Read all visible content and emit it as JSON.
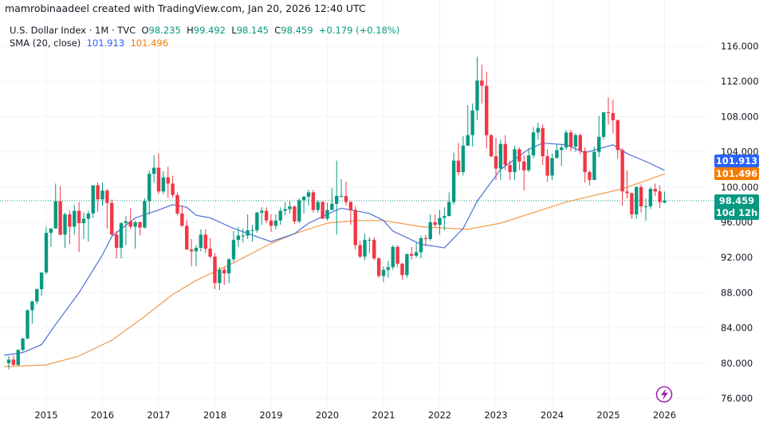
{
  "attribution": "mamrobinaadeel created with TradingView.com, Jan 20, 2026 12:40 UTC",
  "legend": {
    "symbol": "U.S. Dollar Index · 1M · TVC",
    "o_label": "O",
    "o_value": "98.235",
    "h_label": "H",
    "h_value": "99.492",
    "l_label": "L",
    "l_value": "98.145",
    "c_label": "C",
    "c_value": "98.459",
    "change": "+0.179 (+0.18%)",
    "sma_label": "SMA (20, close)",
    "sma_value_1": "101.913",
    "sma_value_2": "101.496"
  },
  "price_tags": {
    "sma_blue": "101.913",
    "sma_orange": "101.496",
    "last_price": "98.459",
    "countdown": "10d 12h"
  },
  "colors": {
    "up": "#089981",
    "down": "#f23645",
    "sma_blue": "#4f6fd6",
    "sma_orange": "#f29a4a",
    "tag_blue": "#2962ff",
    "tag_orange": "#f57c00",
    "grid": "#f0f3fa"
  },
  "logo_icon": "tradingview-lightning-icon",
  "chart_data": {
    "type": "candlestick",
    "title": "U.S. Dollar Index · 1M · TVC",
    "interval": "1M",
    "start": "2014-05",
    "ylim": [
      74,
      118
    ],
    "yticks": [
      "76.000",
      "80.000",
      "84.000",
      "88.000",
      "92.000",
      "96.000",
      "100.000",
      "104.000",
      "108.000",
      "112.000",
      "116.000"
    ],
    "xticks": [
      "2015",
      "2016",
      "2017",
      "2018",
      "2019",
      "2020",
      "2021",
      "2022",
      "2023",
      "2024",
      "2025",
      "2026"
    ],
    "grid": true,
    "last_price_line": 98.459,
    "ohlc": [
      [
        80.0,
        80.8,
        79.3,
        80.4
      ],
      [
        80.4,
        80.9,
        79.7,
        79.8
      ],
      [
        79.8,
        81.6,
        79.7,
        81.5
      ],
      [
        81.5,
        82.9,
        81.3,
        82.8
      ],
      [
        82.8,
        86.1,
        82.7,
        86.0
      ],
      [
        86.0,
        87.1,
        84.5,
        87.0
      ],
      [
        87.0,
        88.5,
        86.7,
        88.4
      ],
      [
        88.4,
        90.3,
        87.6,
        90.3
      ],
      [
        90.3,
        95.5,
        90.1,
        94.8
      ],
      [
        94.8,
        95.3,
        93.2,
        95.3
      ],
      [
        95.3,
        100.4,
        95.3,
        98.4
      ],
      [
        98.4,
        100.1,
        94.5,
        94.6
      ],
      [
        94.6,
        97.1,
        93.1,
        96.9
      ],
      [
        96.9,
        97.4,
        93.5,
        95.5
      ],
      [
        95.5,
        98.0,
        94.6,
        97.3
      ],
      [
        97.3,
        98.3,
        92.6,
        95.9
      ],
      [
        95.9,
        97.1,
        94.1,
        96.4
      ],
      [
        96.4,
        97.3,
        93.8,
        97.0
      ],
      [
        97.0,
        100.2,
        96.5,
        100.2
      ],
      [
        100.2,
        100.5,
        97.2,
        98.6
      ],
      [
        98.6,
        100.5,
        97.9,
        99.6
      ],
      [
        99.6,
        99.8,
        95.3,
        98.2
      ],
      [
        98.2,
        98.6,
        94.5,
        94.6
      ],
      [
        94.6,
        95.0,
        91.9,
        93.1
      ],
      [
        93.1,
        96.0,
        91.9,
        95.9
      ],
      [
        95.9,
        96.7,
        93.4,
        96.1
      ],
      [
        96.1,
        97.6,
        95.2,
        95.5
      ],
      [
        95.5,
        96.2,
        93.0,
        96.0
      ],
      [
        96.0,
        96.1,
        94.5,
        95.4
      ],
      [
        95.4,
        98.7,
        95.3,
        98.4
      ],
      [
        98.4,
        101.9,
        96.9,
        101.5
      ],
      [
        101.5,
        103.6,
        100.5,
        102.2
      ],
      [
        102.2,
        103.8,
        99.2,
        99.5
      ],
      [
        99.5,
        101.8,
        99.2,
        101.1
      ],
      [
        101.1,
        102.3,
        98.8,
        100.4
      ],
      [
        100.4,
        101.3,
        98.8,
        99.1
      ],
      [
        99.1,
        99.4,
        96.8,
        97.0
      ],
      [
        97.0,
        97.9,
        95.5,
        95.6
      ],
      [
        95.6,
        96.3,
        92.9,
        92.9
      ],
      [
        92.9,
        94.1,
        91.0,
        92.7
      ],
      [
        92.7,
        93.4,
        91.0,
        93.1
      ],
      [
        93.1,
        95.2,
        92.7,
        94.6
      ],
      [
        94.6,
        95.2,
        92.5,
        93.0
      ],
      [
        93.0,
        94.2,
        91.9,
        92.1
      ],
      [
        92.1,
        92.5,
        88.4,
        89.1
      ],
      [
        89.1,
        90.9,
        88.3,
        90.6
      ],
      [
        90.6,
        90.9,
        88.9,
        90.2
      ],
      [
        90.2,
        91.9,
        89.1,
        91.8
      ],
      [
        91.8,
        95.0,
        91.5,
        94.0
      ],
      [
        94.0,
        95.5,
        93.2,
        94.5
      ],
      [
        94.5,
        95.3,
        93.7,
        94.5
      ],
      [
        94.5,
        96.9,
        94.1,
        95.1
      ],
      [
        95.1,
        95.7,
        93.8,
        95.1
      ],
      [
        95.1,
        97.2,
        94.8,
        97.1
      ],
      [
        97.1,
        97.7,
        95.7,
        97.3
      ],
      [
        97.3,
        97.7,
        95.9,
        96.2
      ],
      [
        96.2,
        96.9,
        94.9,
        95.6
      ],
      [
        95.6,
        96.9,
        95.2,
        96.2
      ],
      [
        96.2,
        97.7,
        95.7,
        97.3
      ],
      [
        97.3,
        98.3,
        96.8,
        97.5
      ],
      [
        97.5,
        98.4,
        97.0,
        97.8
      ],
      [
        97.8,
        97.9,
        95.8,
        96.1
      ],
      [
        96.1,
        98.7,
        95.9,
        98.5
      ],
      [
        98.5,
        99.0,
        97.0,
        98.9
      ],
      [
        98.9,
        99.7,
        97.9,
        99.4
      ],
      [
        99.4,
        99.7,
        97.1,
        97.4
      ],
      [
        97.4,
        98.5,
        97.1,
        98.3
      ],
      [
        98.3,
        98.4,
        96.4,
        96.4
      ],
      [
        96.4,
        98.2,
        96.2,
        97.4
      ],
      [
        97.4,
        99.9,
        97.4,
        98.1
      ],
      [
        98.1,
        103.0,
        94.6,
        99.0
      ],
      [
        99.0,
        100.9,
        98.8,
        99.0
      ],
      [
        99.0,
        100.6,
        97.9,
        98.3
      ],
      [
        98.3,
        98.4,
        95.7,
        97.4
      ],
      [
        97.4,
        97.8,
        92.9,
        93.4
      ],
      [
        93.4,
        93.9,
        91.9,
        92.1
      ],
      [
        92.1,
        94.7,
        91.7,
        94.0
      ],
      [
        94.0,
        94.3,
        92.5,
        94.0
      ],
      [
        94.0,
        94.3,
        91.7,
        91.9
      ],
      [
        91.9,
        92.0,
        89.7,
        89.9
      ],
      [
        89.9,
        91.0,
        89.2,
        90.6
      ],
      [
        90.6,
        91.6,
        89.7,
        90.9
      ],
      [
        90.9,
        93.4,
        90.6,
        93.2
      ],
      [
        93.2,
        93.4,
        90.9,
        91.3
      ],
      [
        91.3,
        91.4,
        89.5,
        90.0
      ],
      [
        90.0,
        92.4,
        89.7,
        92.4
      ],
      [
        92.4,
        93.2,
        91.8,
        92.2
      ],
      [
        92.2,
        93.7,
        92.0,
        92.6
      ],
      [
        92.6,
        94.5,
        91.9,
        94.2
      ],
      [
        94.2,
        94.6,
        93.3,
        94.1
      ],
      [
        94.1,
        96.9,
        93.9,
        96.0
      ],
      [
        96.0,
        96.9,
        95.5,
        95.7
      ],
      [
        95.7,
        97.4,
        94.6,
        96.5
      ],
      [
        96.5,
        97.7,
        95.1,
        96.7
      ],
      [
        96.7,
        99.4,
        96.7,
        98.3
      ],
      [
        98.3,
        103.9,
        98.0,
        103.0
      ],
      [
        103.0,
        105.0,
        101.3,
        101.7
      ],
      [
        101.7,
        105.8,
        101.3,
        104.7
      ],
      [
        104.7,
        109.3,
        104.7,
        105.9
      ],
      [
        105.9,
        109.5,
        104.6,
        108.7
      ],
      [
        108.7,
        114.8,
        107.6,
        112.1
      ],
      [
        112.1,
        113.9,
        109.5,
        111.5
      ],
      [
        111.5,
        113.1,
        104.4,
        105.9
      ],
      [
        105.9,
        106.0,
        103.4,
        103.5
      ],
      [
        103.5,
        105.6,
        100.8,
        102.1
      ],
      [
        102.1,
        105.4,
        100.8,
        104.9
      ],
      [
        104.9,
        105.9,
        101.9,
        102.5
      ],
      [
        102.5,
        103.0,
        100.8,
        101.7
      ],
      [
        101.7,
        104.7,
        100.8,
        104.3
      ],
      [
        104.3,
        104.5,
        101.9,
        102.9
      ],
      [
        102.9,
        103.6,
        99.6,
        101.9
      ],
      [
        101.9,
        104.4,
        101.7,
        103.6
      ],
      [
        103.6,
        106.8,
        103.3,
        106.2
      ],
      [
        106.2,
        107.3,
        105.4,
        106.7
      ],
      [
        106.7,
        107.1,
        102.5,
        103.5
      ],
      [
        103.5,
        104.3,
        100.6,
        101.3
      ],
      [
        101.3,
        103.8,
        100.8,
        103.3
      ],
      [
        103.3,
        104.9,
        103.3,
        104.2
      ],
      [
        104.2,
        104.8,
        102.4,
        104.5
      ],
      [
        104.5,
        106.5,
        104.2,
        106.2
      ],
      [
        106.2,
        106.5,
        104.1,
        104.6
      ],
      [
        104.6,
        106.1,
        104.0,
        105.9
      ],
      [
        105.9,
        106.1,
        103.7,
        104.1
      ],
      [
        104.1,
        104.5,
        100.5,
        101.7
      ],
      [
        101.7,
        101.9,
        100.2,
        100.8
      ],
      [
        100.8,
        104.6,
        100.8,
        104.0
      ],
      [
        104.0,
        108.1,
        103.4,
        105.7
      ],
      [
        105.7,
        108.5,
        105.4,
        108.5
      ],
      [
        108.5,
        110.2,
        107.1,
        108.4
      ],
      [
        108.4,
        109.9,
        106.1,
        107.6
      ],
      [
        107.6,
        107.7,
        103.2,
        104.2
      ],
      [
        104.2,
        104.4,
        97.9,
        99.5
      ],
      [
        99.5,
        101.9,
        98.7,
        99.3
      ],
      [
        99.3,
        99.4,
        96.4,
        96.9
      ],
      [
        96.9,
        100.1,
        96.4,
        100.0
      ],
      [
        100.0,
        100.3,
        97.1,
        97.8
      ],
      [
        97.8,
        98.7,
        96.2,
        97.8
      ],
      [
        97.8,
        100.0,
        97.5,
        99.8
      ],
      [
        99.8,
        100.4,
        99.0,
        99.5
      ],
      [
        99.5,
        100.2,
        97.6,
        98.3
      ],
      [
        98.235,
        99.492,
        98.145,
        98.459
      ]
    ],
    "sma_blue": [
      [
        "2014-04",
        80.9
      ],
      [
        "2014-08",
        81.2
      ],
      [
        "2014-12",
        82.1
      ],
      [
        "2015-03",
        84.4
      ],
      [
        "2015-08",
        88.0
      ],
      [
        "2016-01",
        92.3
      ],
      [
        "2016-03",
        94.4
      ],
      [
        "2016-08",
        96.5
      ],
      [
        "2017-01",
        97.4
      ],
      [
        "2017-04",
        98.0
      ],
      [
        "2017-07",
        97.7
      ],
      [
        "2017-09",
        96.8
      ],
      [
        "2017-12",
        96.5
      ],
      [
        "2018-05",
        95.3
      ],
      [
        "2019-01",
        93.8
      ],
      [
        "2019-06",
        94.7
      ],
      [
        "2019-09",
        95.9
      ],
      [
        "2020-03",
        97.4
      ],
      [
        "2020-04",
        97.6
      ],
      [
        "2020-10",
        97.0
      ],
      [
        "2021-01",
        96.2
      ],
      [
        "2021-03",
        95.0
      ],
      [
        "2021-09",
        93.5
      ],
      [
        "2022-02",
        93.1
      ],
      [
        "2022-06",
        95.3
      ],
      [
        "2022-09",
        98.4
      ],
      [
        "2023-02",
        102.0
      ],
      [
        "2023-08",
        104.3
      ],
      [
        "2023-11",
        105.0
      ],
      [
        "2024-04",
        104.8
      ],
      [
        "2024-08",
        103.9
      ],
      [
        "2025-02",
        104.8
      ],
      [
        "2025-05",
        103.8
      ],
      [
        "2025-09",
        102.9
      ],
      [
        "2026-01",
        101.913
      ]
    ],
    "sma_orange": [
      [
        "2014-04",
        79.6
      ],
      [
        "2015-01",
        79.8
      ],
      [
        "2015-08",
        80.8
      ],
      [
        "2016-03",
        82.6
      ],
      [
        "2016-10",
        85.3
      ],
      [
        "2017-04",
        87.8
      ],
      [
        "2017-09",
        89.4
      ],
      [
        "2018-05",
        91.4
      ],
      [
        "2019-01",
        93.6
      ],
      [
        "2019-06",
        94.7
      ],
      [
        "2020-01",
        95.9
      ],
      [
        "2020-07",
        96.2
      ],
      [
        "2021-01",
        96.2
      ],
      [
        "2021-09",
        95.5
      ],
      [
        "2022-07",
        95.2
      ],
      [
        "2023-02",
        95.9
      ],
      [
        "2023-09",
        97.1
      ],
      [
        "2024-04",
        98.3
      ],
      [
        "2025-04",
        99.8
      ],
      [
        "2026-01",
        101.496
      ]
    ]
  }
}
